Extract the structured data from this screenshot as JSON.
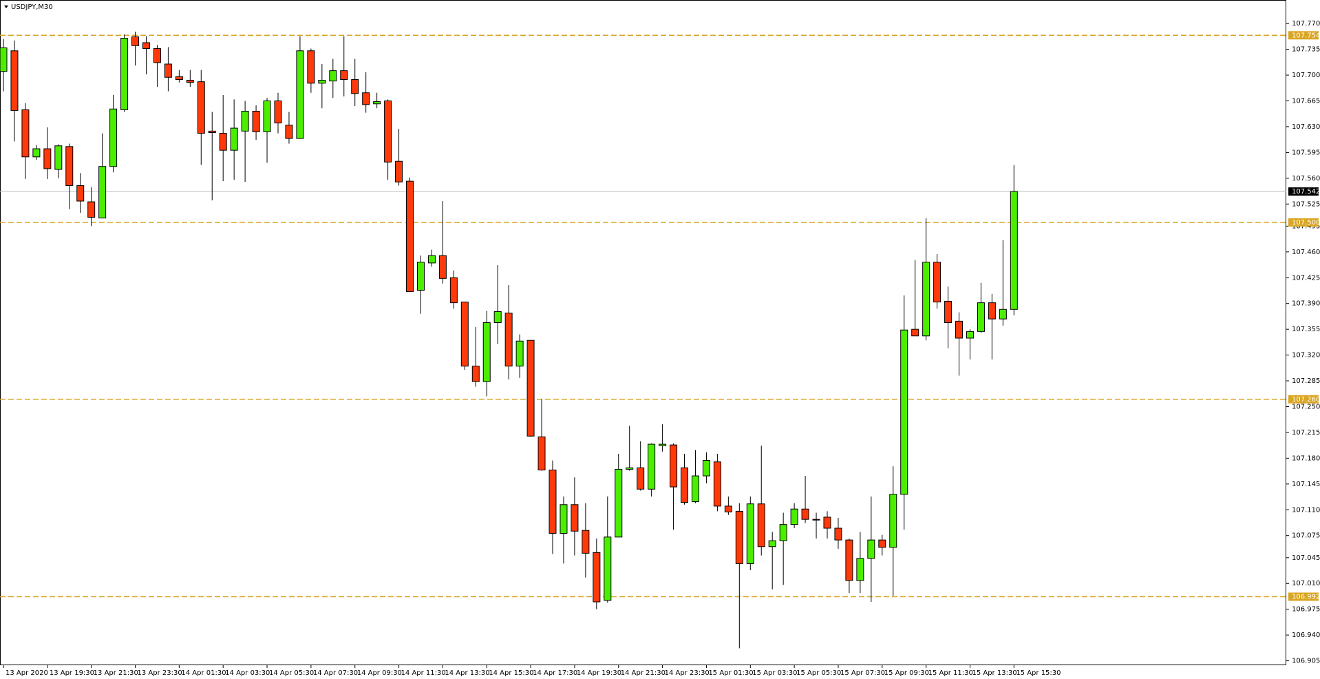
{
  "chart_data": {
    "type": "candlestick",
    "title": "USDJPY,M30",
    "categories": [
      "13 Apr 2020",
      null,
      null,
      null,
      "13 Apr 19:30",
      null,
      null,
      null,
      "13 Apr 21:30",
      null,
      null,
      null,
      "13 Apr 23:30",
      null,
      null,
      null,
      "14 Apr 01:30",
      null,
      null,
      null,
      "14 Apr 03:30",
      null,
      null,
      null,
      "14 Apr 05:30",
      null,
      null,
      null,
      "14 Apr 07:30",
      null,
      null,
      null,
      "14 Apr 09:30",
      null,
      null,
      null,
      "14 Apr 11:30",
      null,
      null,
      null,
      "14 Apr 13:30",
      null,
      null,
      null,
      "14 Apr 15:30",
      null,
      null,
      null,
      "14 Apr 17:30",
      null,
      null,
      null,
      "14 Apr 19:30",
      null,
      null,
      null,
      "14 Apr 21:30",
      null,
      null,
      null,
      "14 Apr 23:30",
      null,
      null,
      null,
      "15 Apr 01:30",
      null,
      null,
      null,
      "15 Apr 03:30",
      null,
      null,
      null,
      "15 Apr 05:30",
      null,
      null,
      null,
      "15 Apr 07:30",
      null,
      null,
      null,
      "15 Apr 09:30",
      null,
      null,
      null,
      "15 Apr 11:30",
      null,
      null,
      null,
      "15 Apr 13:30",
      null,
      null,
      null,
      "15 Apr 15:30"
    ],
    "open": [
      107.705,
      107.733,
      107.653,
      107.589,
      107.6,
      107.572,
      107.603,
      107.55,
      107.528,
      107.506,
      107.576,
      107.653,
      107.752,
      107.744,
      107.736,
      107.715,
      107.698,
      107.693,
      107.691,
      107.624,
      107.621,
      107.598,
      107.624,
      107.651,
      107.623,
      107.665,
      107.632,
      107.614,
      107.733,
      107.689,
      107.692,
      107.706,
      107.694,
      107.676,
      107.661,
      107.665,
      107.583,
      107.556,
      107.408,
      107.445,
      107.455,
      107.425,
      107.392,
      107.305,
      107.284,
      107.364,
      107.377,
      107.305,
      107.34,
      107.209,
      107.164,
      107.078,
      107.117,
      107.082,
      107.052,
      106.987,
      107.073,
      107.165,
      107.167,
      107.138,
      107.197,
      107.198,
      107.167,
      107.121,
      107.156,
      107.175,
      107.115,
      107.108,
      107.037,
      107.118,
      107.06,
      107.068,
      107.09,
      107.111,
      107.097,
      107.1,
      107.085,
      107.069,
      107.014,
      107.044,
      107.069,
      107.059,
      107.131,
      107.355,
      107.346,
      107.446,
      107.393,
      107.366,
      107.343,
      107.352,
      107.391,
      107.369,
      107.382
    ],
    "high": [
      107.749,
      107.747,
      107.662,
      107.605,
      107.629,
      107.606,
      107.607,
      107.567,
      107.548,
      107.621,
      107.673,
      107.755,
      107.759,
      107.753,
      107.741,
      107.738,
      107.707,
      107.707,
      107.707,
      107.65,
      107.673,
      107.667,
      107.665,
      107.659,
      107.669,
      107.676,
      107.65,
      107.753,
      107.736,
      107.715,
      107.722,
      107.753,
      107.722,
      107.704,
      107.676,
      107.667,
      107.627,
      107.561,
      107.455,
      107.463,
      107.529,
      107.435,
      107.392,
      107.358,
      107.38,
      107.442,
      107.415,
      107.348,
      107.34,
      107.26,
      107.177,
      107.128,
      107.154,
      107.119,
      107.071,
      107.128,
      107.186,
      107.224,
      107.203,
      107.2,
      107.226,
      107.2,
      107.186,
      107.191,
      107.188,
      107.186,
      107.128,
      107.119,
      107.128,
      107.197,
      107.08,
      107.106,
      107.119,
      107.156,
      107.106,
      107.108,
      107.099,
      107.071,
      107.08,
      107.128,
      107.076,
      107.169,
      107.401,
      107.449,
      107.506,
      107.457,
      107.413,
      107.378,
      107.355,
      107.418,
      107.403,
      107.476,
      107.578
    ],
    "low": [
      107.678,
      107.61,
      107.559,
      107.585,
      107.559,
      107.56,
      107.518,
      107.513,
      107.495,
      107.506,
      107.568,
      107.65,
      107.713,
      107.701,
      107.684,
      107.678,
      107.69,
      107.684,
      107.578,
      107.53,
      107.556,
      107.558,
      107.555,
      107.612,
      107.581,
      107.621,
      107.607,
      107.614,
      107.676,
      107.655,
      107.669,
      107.671,
      107.658,
      107.649,
      107.655,
      107.558,
      107.55,
      107.406,
      107.376,
      107.44,
      107.417,
      107.383,
      107.3,
      107.277,
      107.264,
      107.335,
      107.287,
      107.289,
      107.209,
      107.163,
      107.05,
      107.037,
      107.048,
      107.018,
      106.975,
      106.984,
      107.073,
      107.163,
      107.136,
      107.128,
      107.189,
      107.083,
      107.117,
      107.119,
      107.146,
      107.108,
      107.103,
      106.922,
      107.028,
      107.048,
      107.002,
      107.008,
      107.085,
      107.092,
      107.071,
      107.071,
      107.057,
      106.997,
      106.997,
      106.985,
      107.048,
      106.993,
      107.083,
      107.346,
      107.34,
      107.383,
      107.329,
      107.292,
      107.314,
      107.35,
      107.314,
      107.36,
      107.374
    ],
    "close": [
      107.737,
      107.652,
      107.589,
      107.6,
      107.573,
      107.604,
      107.55,
      107.529,
      107.507,
      107.576,
      107.654,
      107.75,
      107.74,
      107.736,
      107.717,
      107.697,
      107.694,
      107.69,
      107.621,
      107.622,
      107.598,
      107.628,
      107.651,
      107.623,
      107.665,
      107.635,
      107.614,
      107.733,
      107.689,
      107.693,
      107.706,
      107.694,
      107.675,
      107.66,
      107.664,
      107.582,
      107.555,
      107.406,
      107.446,
      107.455,
      107.424,
      107.391,
      107.305,
      107.284,
      107.364,
      107.379,
      107.305,
      107.339,
      107.21,
      107.164,
      107.078,
      107.117,
      107.081,
      107.051,
      106.985,
      107.073,
      107.165,
      107.167,
      107.138,
      107.199,
      107.199,
      107.141,
      107.12,
      107.156,
      107.177,
      107.115,
      107.107,
      107.037,
      107.118,
      107.06,
      107.068,
      107.09,
      107.111,
      107.097,
      107.096,
      107.085,
      107.069,
      107.014,
      107.044,
      107.069,
      107.059,
      107.131,
      107.354,
      107.346,
      107.446,
      107.392,
      107.364,
      107.343,
      107.352,
      107.391,
      107.369,
      107.382,
      107.542
    ],
    "up_color": "#4cee00",
    "down_color": "#ff3a0a",
    "ylim": [
      106.899,
      107.801
    ],
    "yticks": [
      {
        "value": 107.77,
        "label": "107.770"
      },
      107.735,
      {
        "value": 107.7,
        "label": "107.700"
      },
      107.665,
      {
        "value": 107.63,
        "label": "107.630"
      },
      107.595,
      {
        "value": 107.56,
        "label": "107.560"
      },
      107.525,
      107.495,
      {
        "value": 107.46,
        "label": "107.460"
      },
      107.425,
      {
        "value": 107.39,
        "label": "107.390"
      },
      107.355,
      {
        "value": 107.32,
        "label": "107.320"
      },
      107.285,
      {
        "value": 107.25,
        "label": "107.250"
      },
      107.215,
      {
        "value": 107.18,
        "label": "107.180"
      },
      107.145,
      {
        "value": 107.11,
        "label": "107.110"
      },
      107.075,
      107.045,
      {
        "value": 107.01,
        "label": "107.010"
      },
      106.975,
      {
        "value": 106.94,
        "label": "106.940"
      },
      106.905
    ],
    "levels": [
      107.754,
      {
        "value": 107.5,
        "label": "107.500"
      },
      {
        "value": 107.26,
        "label": "107.260"
      },
      106.992
    ],
    "level_color": "#daa520",
    "current_price": 107.542
  }
}
